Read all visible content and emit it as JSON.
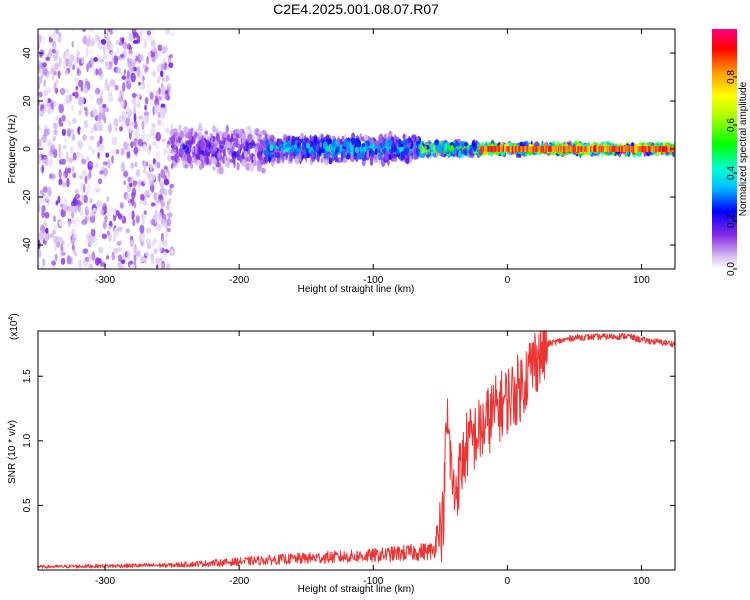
{
  "title": "C2E4.2025.001.08.07.R07",
  "chart_data": [
    {
      "type": "heatmap",
      "xlabel": "Height of straight line (km)",
      "ylabel": "Frequency (Hz)",
      "xlim": [
        -350,
        125
      ],
      "ylim": [
        -50,
        50
      ],
      "x_ticks": [
        -300,
        -200,
        -100,
        0,
        100
      ],
      "y_ticks": [
        -40,
        -20,
        0,
        20,
        40
      ],
      "colorbar": {
        "label": "Normalized spectral amplitude",
        "range": [
          0.0,
          1.0
        ],
        "ticks": [
          0.0,
          0.2,
          0.4,
          0.6,
          0.8
        ],
        "colormap": "rainbow"
      },
      "regions": [
        {
          "x_range": [
            -350,
            -250
          ],
          "freq_spread": 50,
          "amplitude": 0.1
        },
        {
          "x_range": [
            -250,
            -180
          ],
          "freq_spread": 10,
          "amplitude": 0.15
        },
        {
          "x_range": [
            -180,
            -65
          ],
          "freq_spread": 6,
          "amplitude": 0.3
        },
        {
          "x_range": [
            -65,
            -20
          ],
          "freq_spread": 3,
          "amplitude": 0.5
        },
        {
          "x_range": [
            -20,
            125
          ],
          "freq_spread": 2,
          "amplitude": 0.8
        }
      ]
    },
    {
      "type": "line",
      "xlabel": "Height of straight line (km)",
      "ylabel": "SNR (10 * v/v)",
      "y_multiplier": "(x10",
      "y_multiplier_exp": "4",
      "y_multiplier_close": ")",
      "xlim": [
        -350,
        125
      ],
      "ylim": [
        0,
        18500
      ],
      "x_ticks": [
        -300,
        -200,
        -100,
        0,
        100
      ],
      "y_ticks": [
        {
          "value": 5000,
          "label": "0.5"
        },
        {
          "value": 10000,
          "label": "1.0"
        },
        {
          "value": 15000,
          "label": "1.5"
        }
      ],
      "series_color": "#ee3333",
      "series_key_points": [
        {
          "x": -350,
          "y": 200
        },
        {
          "x": -250,
          "y": 300
        },
        {
          "x": -160,
          "y": 700
        },
        {
          "x": -100,
          "y": 900
        },
        {
          "x": -55,
          "y": 1200
        },
        {
          "x": -48,
          "y": 4000
        },
        {
          "x": -45,
          "y": 12000
        },
        {
          "x": -40,
          "y": 6000
        },
        {
          "x": -30,
          "y": 10000
        },
        {
          "x": -20,
          "y": 11000
        },
        {
          "x": -10,
          "y": 12500
        },
        {
          "x": 0,
          "y": 13500
        },
        {
          "x": 10,
          "y": 14500
        },
        {
          "x": 20,
          "y": 16500
        },
        {
          "x": 30,
          "y": 17500
        },
        {
          "x": 50,
          "y": 18000
        },
        {
          "x": 90,
          "y": 18100
        },
        {
          "x": 100,
          "y": 17800
        },
        {
          "x": 125,
          "y": 17500
        }
      ]
    }
  ]
}
